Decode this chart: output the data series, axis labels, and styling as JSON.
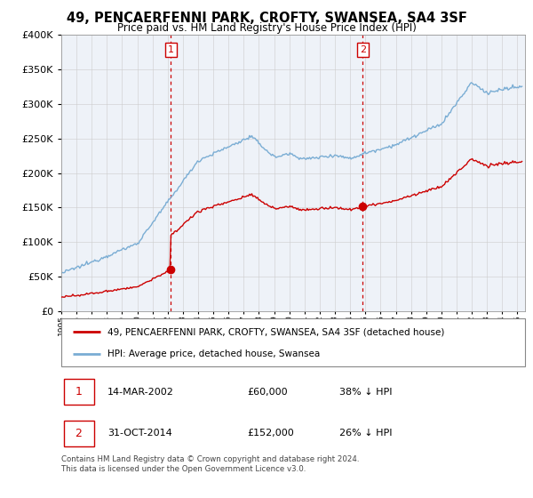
{
  "title": "49, PENCAERFENNI PARK, CROFTY, SWANSEA, SA4 3SF",
  "subtitle": "Price paid vs. HM Land Registry's House Price Index (HPI)",
  "hpi_color": "#7aadd4",
  "price_color": "#cc0000",
  "vline_color": "#cc0000",
  "purchase1_date_num": 2002.21,
  "purchase1_price": 60000,
  "purchase2_date_num": 2014.83,
  "purchase2_price": 152000,
  "legend_label_price": "49, PENCAERFENNI PARK, CROFTY, SWANSEA, SA4 3SF (detached house)",
  "legend_label_hpi": "HPI: Average price, detached house, Swansea",
  "table_row1": [
    "1",
    "14-MAR-2002",
    "£60,000",
    "38% ↓ HPI"
  ],
  "table_row2": [
    "2",
    "31-OCT-2014",
    "£152,000",
    "26% ↓ HPI"
  ],
  "footer": "Contains HM Land Registry data © Crown copyright and database right 2024.\nThis data is licensed under the Open Government Licence v3.0.",
  "ylim": [
    0,
    400000
  ],
  "yticks": [
    0,
    50000,
    100000,
    150000,
    200000,
    250000,
    300000,
    350000,
    400000
  ],
  "xlim_start": 1995,
  "xlim_end": 2025.5,
  "background_color": "#eef2f8"
}
